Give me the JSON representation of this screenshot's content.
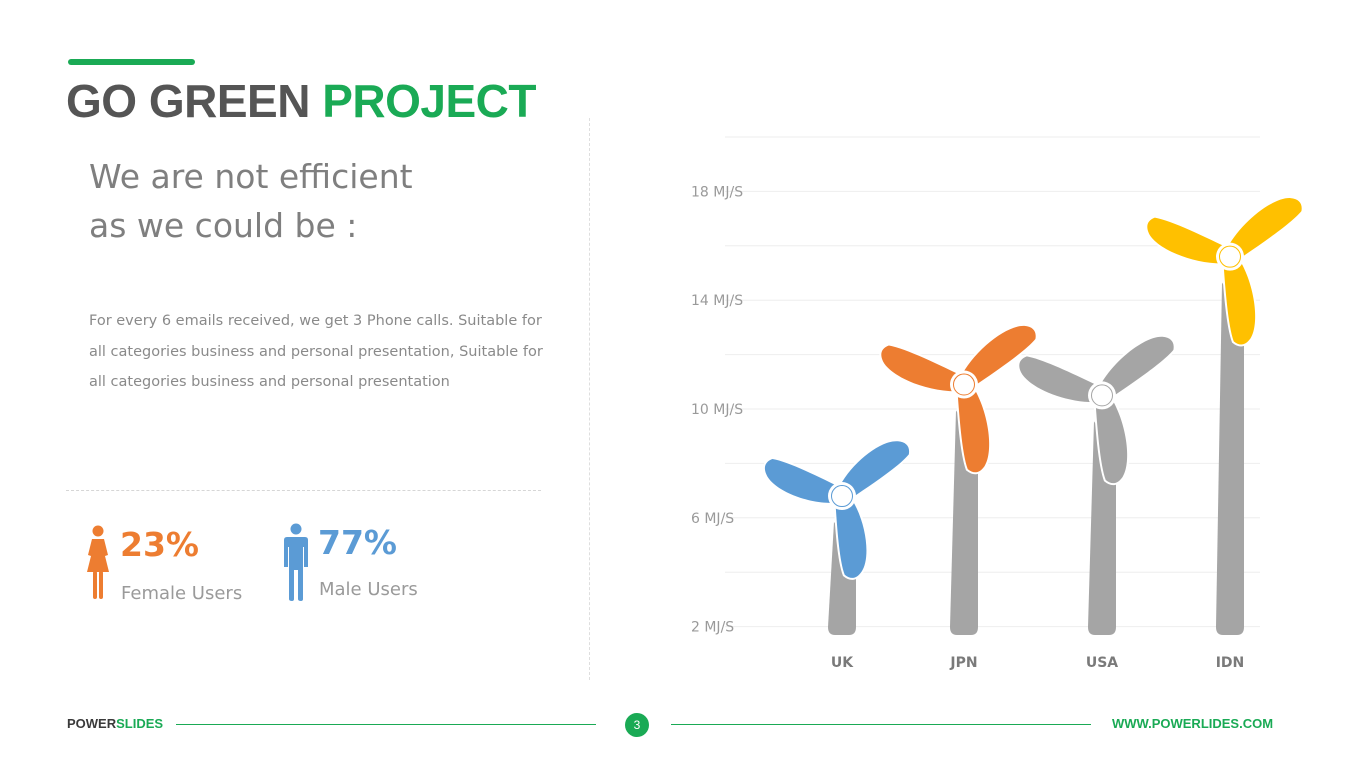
{
  "header": {
    "title_part1": "GO GREEN",
    "title_part2": "PROJECT"
  },
  "left_panel": {
    "subtitle_lines": [
      "We are not efficient",
      "as we could be :"
    ],
    "body_lines": [
      "For every 6 emails received, we get 3 Phone calls. Suitable for",
      "all categories business and personal presentation, Suitable for",
      "all categories business and personal presentation"
    ],
    "stats": [
      {
        "value": "23%",
        "label": "Female Users",
        "icon": "female-user-icon",
        "color": "#ed7d31"
      },
      {
        "value": "77%",
        "label": "Male Users",
        "icon": "male-user-icon",
        "color": "#5b9bd5"
      }
    ]
  },
  "chart_data": {
    "type": "bar",
    "categories": [
      "UK",
      "JPN",
      "USA",
      "IDN"
    ],
    "values": [
      6.8,
      10.9,
      10.5,
      15.6
    ],
    "ylim": [
      0,
      20
    ],
    "y_ticks": [
      2,
      6,
      10,
      14,
      18
    ],
    "y_tick_labels": [
      "2 MJ/S",
      "6 MJ/S",
      "10 MJ/S",
      "14 MJ/S",
      "18 MJ/S"
    ],
    "grid": true,
    "bar_style": "wind-turbine",
    "colors": [
      "#5b9bd5",
      "#ed7d31",
      "#a5a5a5",
      "#ffc000"
    ],
    "tower_color": "#a5a5a5"
  },
  "footer": {
    "brand_part1": "POWER",
    "brand_part2": "SLIDES",
    "page_number": "3",
    "website": "WWW.POWERLIDES.COM"
  },
  "theme": {
    "accent": "#1aaa55",
    "text_gray": "#555555"
  }
}
